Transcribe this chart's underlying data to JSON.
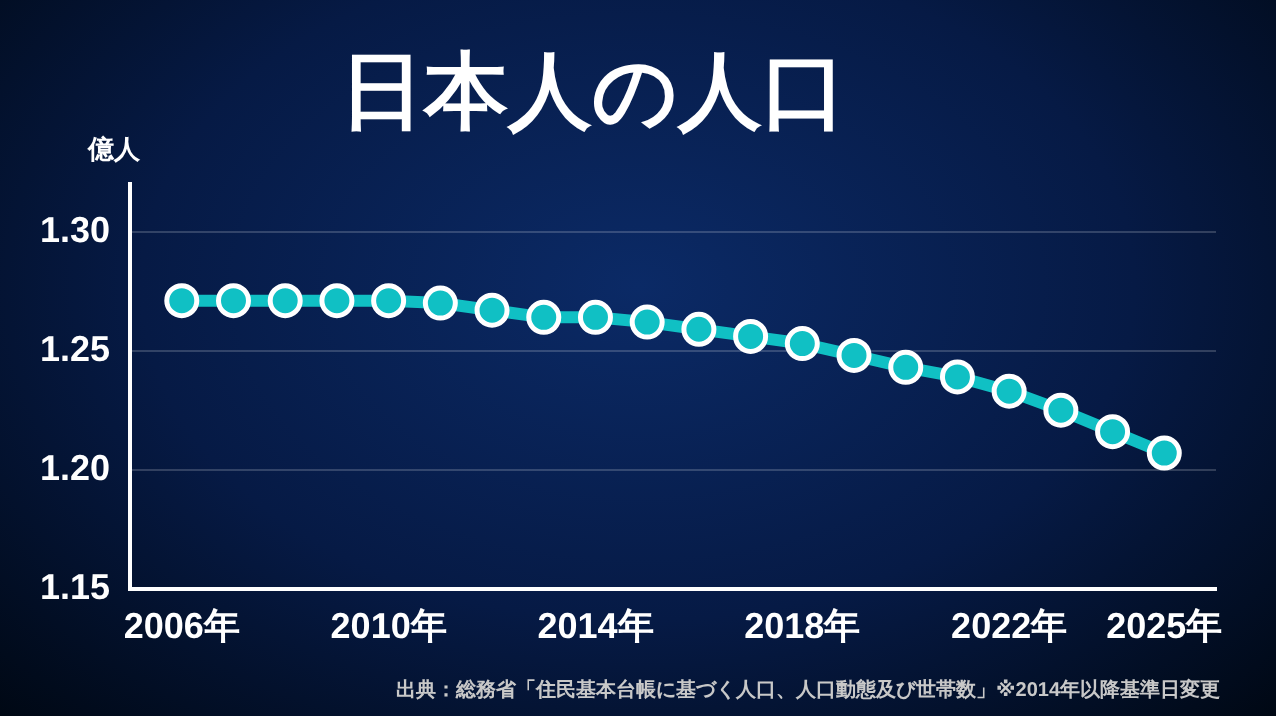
{
  "chart_data": {
    "type": "line",
    "title": "日本人の人口",
    "ylabel": "億人",
    "x": [
      2006,
      2007,
      2008,
      2009,
      2010,
      2011,
      2012,
      2013,
      2014,
      2015,
      2016,
      2017,
      2018,
      2019,
      2020,
      2021,
      2022,
      2023,
      2024,
      2025
    ],
    "series": [
      {
        "color": "#10c0c4",
        "values": [
          1.271,
          1.271,
          1.271,
          1.271,
          1.271,
          1.27,
          1.267,
          1.264,
          1.264,
          1.262,
          1.259,
          1.256,
          1.253,
          1.248,
          1.243,
          1.239,
          1.233,
          1.225,
          1.216,
          1.207
        ]
      }
    ],
    "xlim": [
      2005,
      2026
    ],
    "xticks": [
      {
        "value": 2006,
        "label": "2006年"
      },
      {
        "value": 2010,
        "label": "2010年"
      },
      {
        "value": 2014,
        "label": "2014年"
      },
      {
        "value": 2018,
        "label": "2018年"
      },
      {
        "value": 2022,
        "label": "2022年"
      },
      {
        "value": 2025,
        "label": "2025年"
      }
    ],
    "ylim": [
      1.15,
      1.32
    ],
    "yticks": [
      {
        "value": 1.15,
        "label": "1.15"
      },
      {
        "value": 1.2,
        "label": "1.20"
      },
      {
        "value": 1.25,
        "label": "1.25"
      },
      {
        "value": 1.3,
        "label": "1.30"
      }
    ],
    "grid": "y",
    "marker": "circle",
    "line_style": "solid",
    "legend": false,
    "annotations": [
      "出典：総務省「住民基本台帳に基づく人口、人口動態及び世帯数」※2014年以降基準日変更"
    ]
  }
}
